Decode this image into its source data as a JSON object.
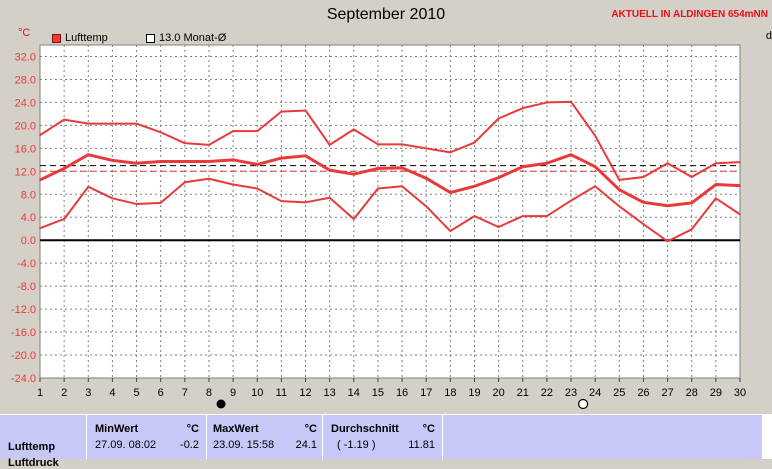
{
  "header": {
    "title": "September 2010",
    "station": "AKTUELL IN ALDINGEN 654mNN",
    "edge_letter": "d"
  },
  "legend": [
    {
      "label": "Lufttemp",
      "color": "#e83a3a",
      "filled": true
    },
    {
      "label": "13.0 Monat-Ø",
      "color": "#000000",
      "filled": false
    }
  ],
  "chart_data": {
    "type": "line",
    "ylabel": "°C",
    "ylim": [
      -24,
      34
    ],
    "yticks": [
      "32.0",
      "28.0",
      "24.0",
      "20.0",
      "16.0",
      "12.0",
      "8.0",
      "4.0",
      "0.0",
      "-4.0",
      "-8.0",
      "-12.0",
      "-16.0",
      "-20.0",
      "-24.0"
    ],
    "x": [
      1,
      2,
      3,
      4,
      5,
      6,
      7,
      8,
      9,
      10,
      11,
      12,
      13,
      14,
      15,
      16,
      17,
      18,
      19,
      20,
      21,
      22,
      23,
      24,
      25,
      26,
      27,
      28,
      29,
      30
    ],
    "series": [
      {
        "role": "max",
        "values": [
          18.3,
          21.0,
          20.3,
          20.3,
          20.3,
          18.8,
          16.9,
          16.6,
          19.0,
          19.0,
          22.4,
          22.6,
          16.6,
          19.3,
          16.7,
          16.7,
          16.0,
          15.3,
          17.0,
          21.2,
          23.0,
          24.0,
          24.1,
          18.2,
          10.5,
          11.0,
          13.4,
          11.0,
          13.4,
          13.6
        ]
      },
      {
        "role": "mean",
        "values": [
          10.5,
          12.5,
          14.9,
          13.9,
          13.4,
          13.7,
          13.7,
          13.7,
          14.0,
          13.2,
          14.3,
          14.7,
          12.2,
          11.5,
          12.5,
          12.6,
          10.8,
          8.3,
          9.4,
          10.9,
          12.8,
          13.4,
          14.9,
          12.8,
          8.8,
          6.6,
          6.0,
          6.5,
          9.7,
          9.5
        ]
      },
      {
        "role": "min",
        "values": [
          2.1,
          3.7,
          9.3,
          7.3,
          6.3,
          6.5,
          10.1,
          10.7,
          9.7,
          9.0,
          6.8,
          6.6,
          7.4,
          3.7,
          9.0,
          9.4,
          5.9,
          1.6,
          4.2,
          2.3,
          4.2,
          4.2,
          6.9,
          9.4,
          5.9,
          2.8,
          -0.2,
          1.9,
          7.3,
          4.5
        ]
      }
    ],
    "reference_lines": [
      {
        "value": 13.0,
        "style": "dashed",
        "color": "#000000"
      },
      {
        "value": 12.0,
        "style": "dashed",
        "color": "#e83a3a"
      }
    ],
    "moon_markers": [
      {
        "x": 8.5,
        "phase": "new"
      },
      {
        "x": 23.5,
        "phase": "full"
      }
    ],
    "grid": true
  },
  "stats": {
    "row_label": "Lufttemp",
    "row_label_next": "Luftdruck",
    "min": {
      "header": "MinWert",
      "unit": "°C",
      "when": "27.09.  08:02",
      "value": "-0.2"
    },
    "max": {
      "header": "MaxWert",
      "unit": "°C",
      "when": "23.09.  15:58",
      "value": "24.1"
    },
    "avg": {
      "header": "Durchschnitt",
      "unit": "°C",
      "note": "( -1.19 )",
      "value": "11.81"
    }
  }
}
